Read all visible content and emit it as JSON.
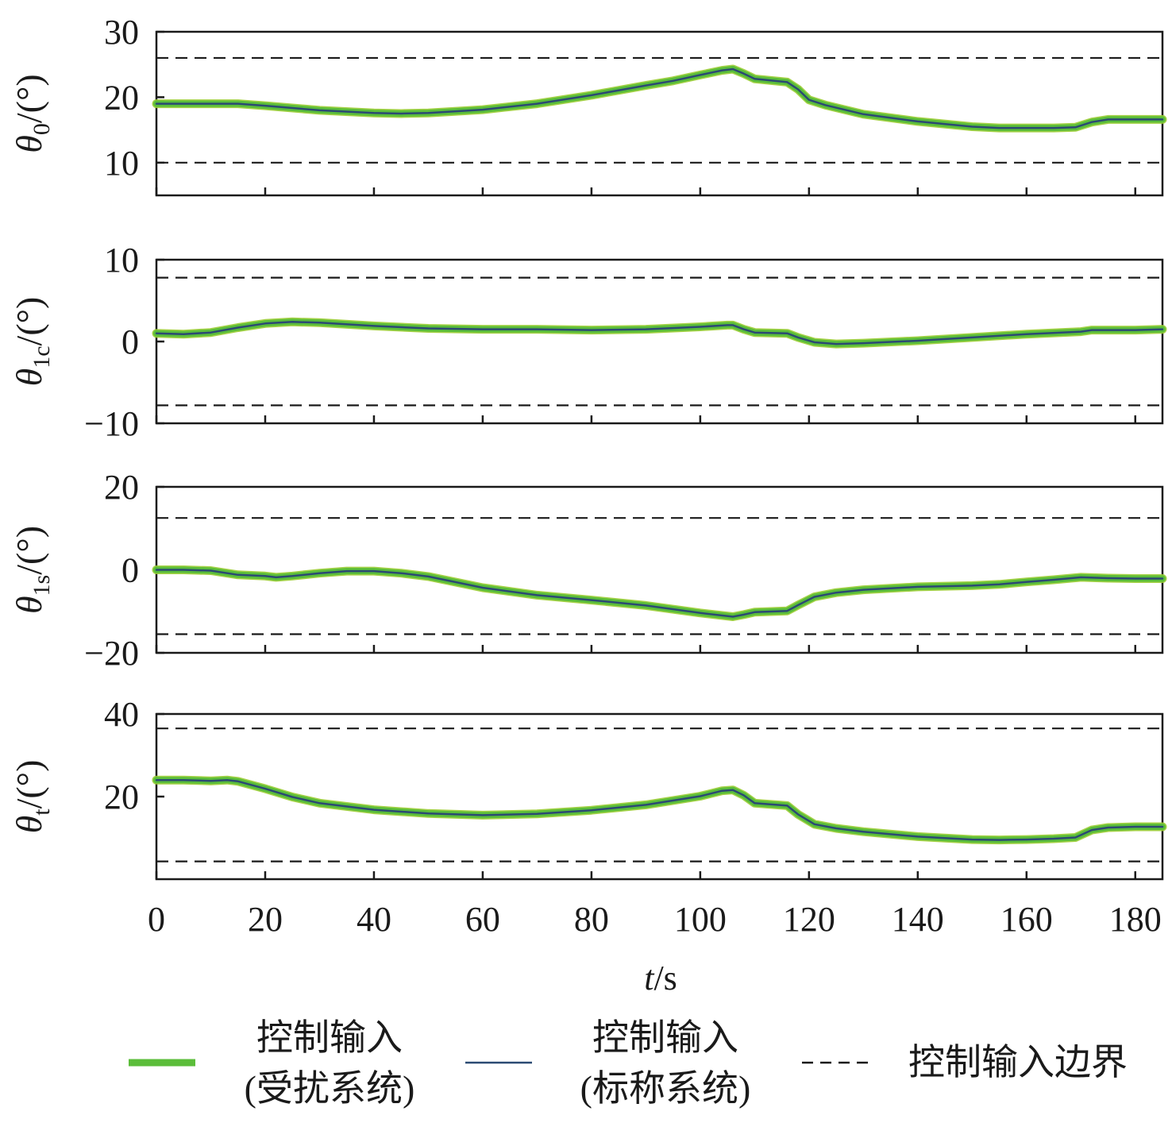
{
  "colors": {
    "disturbed": "#5bbd3a",
    "disturbed_edge": "#9acd32",
    "nominal": "#2b4a73",
    "bound": "#1a1a1a",
    "axis": "#1a1a1a"
  },
  "chart_data": [
    {
      "type": "line",
      "ylabel": {
        "symbol": "θ",
        "sub": "0",
        "unit": "/(°)"
      },
      "xlim": [
        0,
        185
      ],
      "ylim": [
        5,
        30
      ],
      "yticks": [
        10,
        20,
        30
      ],
      "xticks": [
        0,
        20,
        40,
        60,
        80,
        100,
        120,
        140,
        160,
        180
      ],
      "bounds": [
        10,
        26
      ],
      "series": [
        {
          "key": "disturbed",
          "x": [
            0,
            5,
            10,
            15,
            20,
            30,
            40,
            45,
            50,
            60,
            70,
            80,
            90,
            95,
            100,
            104,
            106,
            108,
            110,
            116,
            118,
            120,
            123,
            130,
            140,
            150,
            155,
            160,
            165,
            169,
            172,
            175,
            180,
            185
          ],
          "y": [
            19,
            19,
            19,
            19,
            18.7,
            18,
            17.6,
            17.5,
            17.6,
            18.1,
            19,
            20.3,
            21.8,
            22.5,
            23.4,
            24.1,
            24.3,
            23.6,
            22.8,
            22.3,
            21.2,
            19.6,
            18.8,
            17.4,
            16.3,
            15.5,
            15.3,
            15.3,
            15.3,
            15.4,
            16.2,
            16.6,
            16.6,
            16.6
          ]
        },
        {
          "key": "nominal",
          "x": [
            0,
            5,
            10,
            15,
            20,
            30,
            40,
            45,
            50,
            60,
            70,
            80,
            90,
            95,
            100,
            104,
            106,
            108,
            110,
            116,
            118,
            120,
            123,
            130,
            140,
            150,
            155,
            160,
            165,
            169,
            172,
            175,
            180,
            185
          ],
          "y": [
            19,
            19,
            19,
            19,
            18.7,
            18,
            17.6,
            17.5,
            17.6,
            18.1,
            19,
            20.3,
            21.8,
            22.5,
            23.4,
            24.1,
            24.3,
            23.6,
            22.8,
            22.3,
            21.2,
            19.6,
            18.8,
            17.4,
            16.3,
            15.5,
            15.3,
            15.3,
            15.3,
            15.4,
            16.2,
            16.6,
            16.6,
            16.6
          ]
        }
      ]
    },
    {
      "type": "line",
      "ylabel": {
        "symbol": "θ",
        "sub": "1c",
        "unit": "/(°)"
      },
      "xlim": [
        0,
        185
      ],
      "ylim": [
        -10,
        10
      ],
      "yticks": [
        -10,
        0,
        10
      ],
      "xticks": [
        0,
        20,
        40,
        60,
        80,
        100,
        120,
        140,
        160,
        180
      ],
      "bounds": [
        -7.8,
        7.8
      ],
      "series": [
        {
          "key": "disturbed",
          "x": [
            0,
            5,
            10,
            15,
            20,
            25,
            30,
            40,
            50,
            60,
            70,
            80,
            90,
            100,
            105,
            106,
            108,
            110,
            116,
            118,
            121,
            125,
            130,
            140,
            150,
            160,
            170,
            172,
            175,
            180,
            185
          ],
          "y": [
            1,
            0.9,
            1.1,
            1.7,
            2.2,
            2.4,
            2.3,
            1.9,
            1.6,
            1.5,
            1.5,
            1.4,
            1.5,
            1.8,
            2.0,
            2.0,
            1.5,
            1.1,
            1.0,
            0.5,
            -0.1,
            -0.3,
            -0.2,
            0.1,
            0.5,
            0.9,
            1.2,
            1.4,
            1.4,
            1.4,
            1.5
          ]
        },
        {
          "key": "nominal",
          "x": [
            0,
            5,
            10,
            15,
            20,
            25,
            30,
            40,
            50,
            60,
            70,
            80,
            90,
            100,
            105,
            106,
            108,
            110,
            116,
            118,
            121,
            125,
            130,
            140,
            150,
            160,
            170,
            172,
            175,
            180,
            185
          ],
          "y": [
            1,
            0.9,
            1.1,
            1.7,
            2.2,
            2.4,
            2.3,
            1.9,
            1.6,
            1.5,
            1.5,
            1.4,
            1.5,
            1.8,
            2.0,
            2.0,
            1.5,
            1.1,
            1.0,
            0.5,
            -0.1,
            -0.3,
            -0.2,
            0.1,
            0.5,
            0.9,
            1.2,
            1.4,
            1.4,
            1.4,
            1.5
          ]
        }
      ]
    },
    {
      "type": "line",
      "ylabel": {
        "symbol": "θ",
        "sub": "1s",
        "unit": "/(°)"
      },
      "xlim": [
        0,
        185
      ],
      "ylim": [
        -20,
        20
      ],
      "yticks": [
        -20,
        0,
        20
      ],
      "xticks": [
        0,
        20,
        40,
        60,
        80,
        100,
        120,
        140,
        160,
        180
      ],
      "bounds": [
        -15.5,
        12.5
      ],
      "series": [
        {
          "key": "disturbed",
          "x": [
            0,
            5,
            10,
            15,
            20,
            22,
            25,
            30,
            35,
            40,
            45,
            50,
            60,
            70,
            80,
            90,
            100,
            106,
            108,
            110,
            116,
            118,
            121,
            125,
            130,
            140,
            150,
            155,
            160,
            165,
            170,
            175,
            180,
            185
          ],
          "y": [
            0,
            0,
            -0.2,
            -1.2,
            -1.5,
            -1.8,
            -1.5,
            -0.8,
            -0.3,
            -0.3,
            -0.8,
            -1.6,
            -4.3,
            -6.1,
            -7.3,
            -8.6,
            -10.4,
            -11.3,
            -10.8,
            -10.2,
            -9.9,
            -8.5,
            -6.5,
            -5.5,
            -4.8,
            -4.1,
            -3.8,
            -3.5,
            -2.9,
            -2.4,
            -1.8,
            -2,
            -2.1,
            -2.1
          ]
        },
        {
          "key": "nominal",
          "x": [
            0,
            5,
            10,
            15,
            20,
            22,
            25,
            30,
            35,
            40,
            45,
            50,
            60,
            70,
            80,
            90,
            100,
            106,
            108,
            110,
            116,
            118,
            121,
            125,
            130,
            140,
            150,
            155,
            160,
            165,
            170,
            175,
            180,
            185
          ],
          "y": [
            0,
            0,
            -0.2,
            -1.2,
            -1.5,
            -1.8,
            -1.5,
            -0.8,
            -0.3,
            -0.3,
            -0.8,
            -1.6,
            -4.3,
            -6.1,
            -7.3,
            -8.6,
            -10.4,
            -11.3,
            -10.8,
            -10.2,
            -9.9,
            -8.5,
            -6.5,
            -5.5,
            -4.8,
            -4.1,
            -3.8,
            -3.5,
            -2.9,
            -2.4,
            -1.8,
            -2,
            -2.1,
            -2.1
          ]
        }
      ]
    },
    {
      "type": "line",
      "ylabel": {
        "symbol": "θ",
        "sub": "t",
        "unit": "/(°)"
      },
      "xlim": [
        0,
        185
      ],
      "ylim": [
        0,
        40
      ],
      "yticks": [
        20,
        40
      ],
      "xticks": [
        0,
        20,
        40,
        60,
        80,
        100,
        120,
        140,
        160,
        180
      ],
      "bounds": [
        4.3,
        36.5
      ],
      "series": [
        {
          "key": "disturbed",
          "x": [
            0,
            5,
            10,
            13,
            15,
            20,
            25,
            30,
            40,
            50,
            60,
            70,
            80,
            90,
            100,
            104,
            106,
            108,
            110,
            116,
            118,
            121,
            125,
            130,
            140,
            150,
            155,
            160,
            165,
            169,
            172,
            175,
            180,
            185
          ],
          "y": [
            24,
            24,
            23.8,
            24,
            23.7,
            21.9,
            19.9,
            18.4,
            16.8,
            15.9,
            15.5,
            15.8,
            16.7,
            18,
            20.1,
            21.4,
            21.6,
            20.3,
            18.4,
            17.8,
            15.7,
            13.3,
            12.3,
            11.5,
            10.3,
            9.6,
            9.5,
            9.6,
            9.8,
            10.1,
            11.9,
            12.5,
            12.7,
            12.7
          ]
        },
        {
          "key": "nominal",
          "x": [
            0,
            5,
            10,
            13,
            15,
            20,
            25,
            30,
            40,
            50,
            60,
            70,
            80,
            90,
            100,
            104,
            106,
            108,
            110,
            116,
            118,
            121,
            125,
            130,
            140,
            150,
            155,
            160,
            165,
            169,
            172,
            175,
            180,
            185
          ],
          "y": [
            24,
            24,
            23.8,
            24,
            23.7,
            21.9,
            19.9,
            18.4,
            16.8,
            15.9,
            15.5,
            15.8,
            16.7,
            18,
            20.1,
            21.4,
            21.6,
            20.3,
            18.4,
            17.8,
            15.7,
            13.3,
            12.3,
            11.5,
            10.3,
            9.6,
            9.5,
            9.6,
            9.8,
            10.1,
            11.9,
            12.5,
            12.7,
            12.7
          ]
        }
      ]
    }
  ],
  "xaxis": {
    "var": "t",
    "unit": "/s"
  },
  "legend": {
    "disturbed_line1": "控制输入",
    "disturbed_line2": "(受扰系统)",
    "nominal_line1": "控制输入",
    "nominal_line2": "(标称系统)",
    "bound": "控制输入边界"
  }
}
